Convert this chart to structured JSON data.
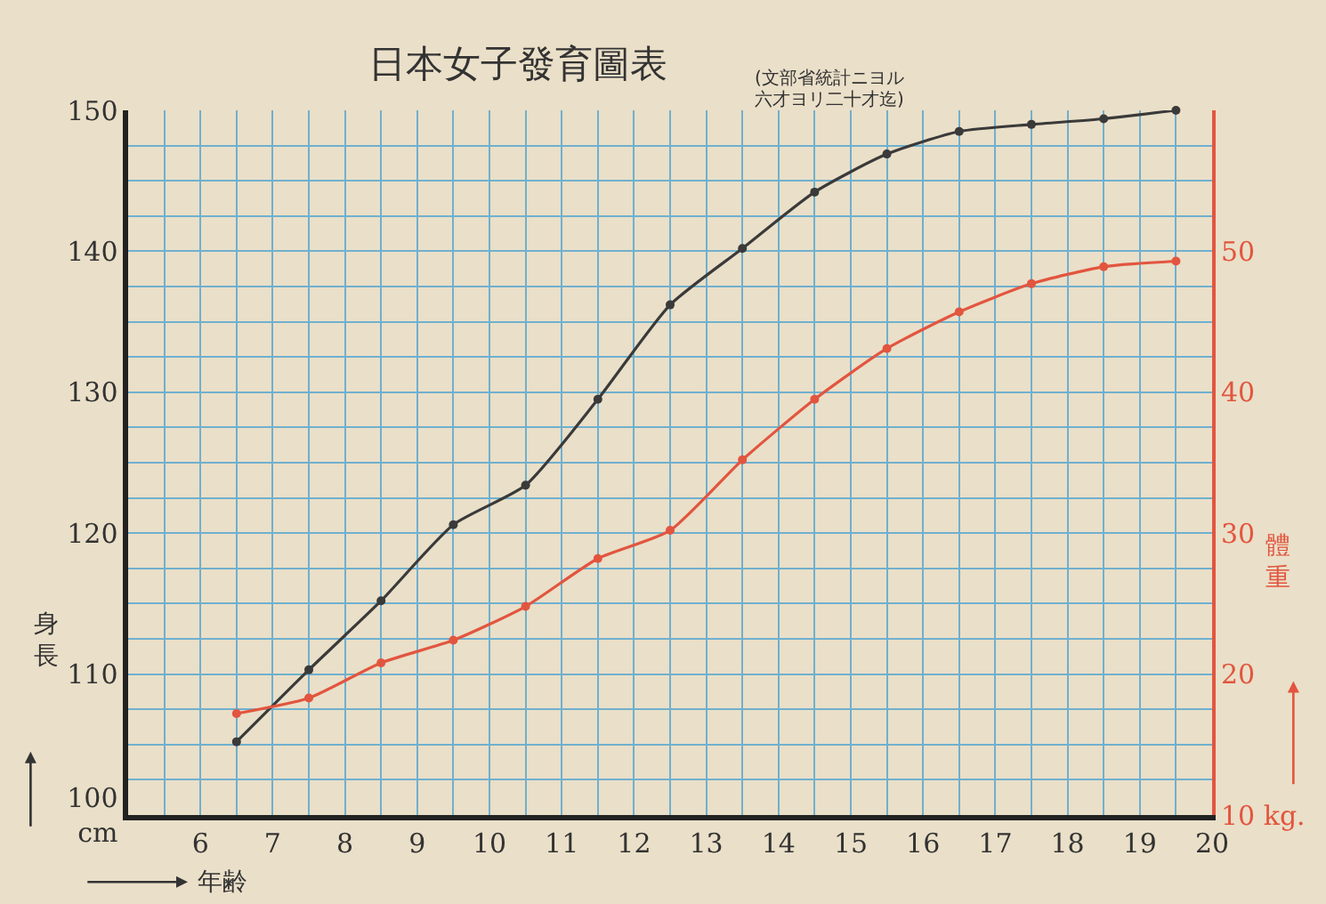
{
  "chart_data": {
    "type": "line",
    "title": "日本女子發育圖表",
    "subtitle": "(文部省統計ニヨル",
    "annotations": [
      "六才ヨリ二十才迄)"
    ],
    "xlabel": "年齢",
    "ylabel": "身長",
    "y2label": "體重",
    "x": [
      6.5,
      7.5,
      8.5,
      9.5,
      10.5,
      11.5,
      12.5,
      13.5,
      14.5,
      15.5,
      16.5,
      17.5,
      18.5,
      19.5
    ],
    "series": [
      {
        "color": "#3a3a3a",
        "values": [
          105.2,
          110.3,
          115.2,
          120.6,
          123.4,
          129.5,
          136.2,
          140.2,
          144.2,
          146.9,
          148.5,
          149,
          149.4,
          150
        ]
      },
      {
        "color": "#e2553f",
        "axis": "y2",
        "values": [
          17.2,
          18.3,
          20.8,
          22.4,
          24.8,
          28.2,
          30.2,
          35.2,
          39.5,
          43.1,
          45.7,
          47.7,
          48.9,
          49.3
        ]
      }
    ],
    "xlim": [
      5,
      20
    ],
    "xticks": [
      6,
      7,
      8,
      9,
      10,
      11,
      12,
      13,
      14,
      15,
      16,
      17,
      18,
      19,
      20
    ],
    "ylim": [
      100,
      150
    ],
    "yticks": [
      {
        "value": 100,
        "label": "100\ncm"
      },
      110,
      120,
      130,
      140,
      150
    ],
    "y2lim": [
      10,
      60
    ],
    "y2ticks": [
      {
        "value": 10,
        "label": "10 kg."
      },
      20,
      30,
      40,
      50
    ],
    "grid": true,
    "marker": "circle",
    "line_style": "solid"
  }
}
